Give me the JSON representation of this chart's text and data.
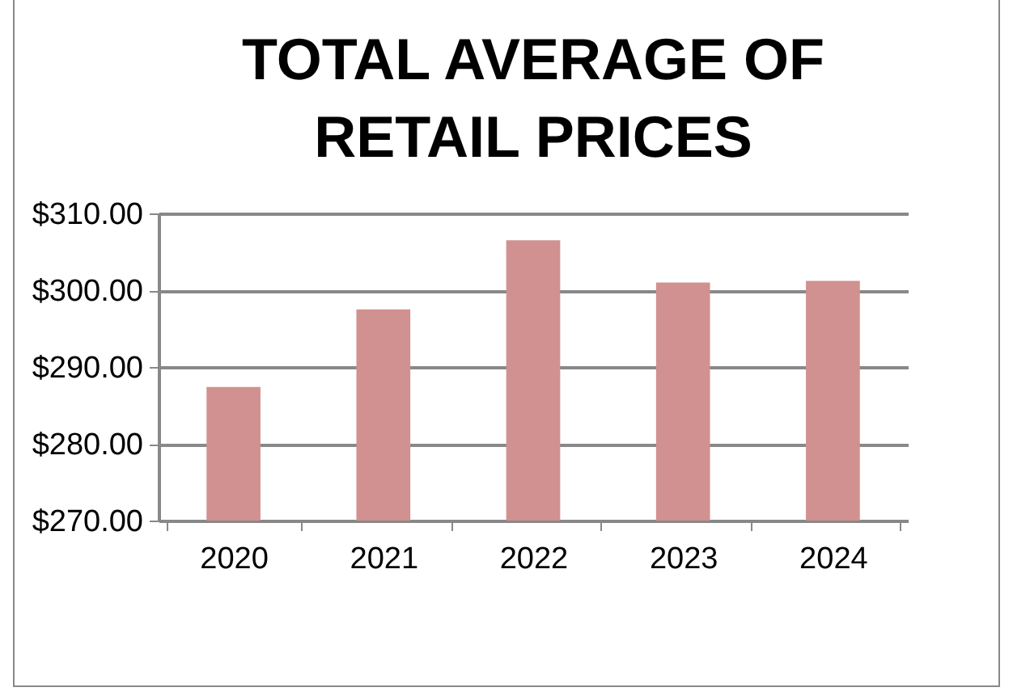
{
  "chart_data": {
    "type": "bar",
    "title": [
      "TOTAL AVERAGE OF",
      "RETAIL PRICES"
    ],
    "categories": [
      "2020",
      "2021",
      "2022",
      "2023",
      "2024"
    ],
    "values": [
      287.4,
      297.5,
      306.5,
      301.0,
      301.2
    ],
    "color": "#d19190",
    "ylim": [
      270,
      310
    ],
    "yticks": [
      {
        "value": 270,
        "label": "$270.00"
      },
      {
        "value": 280,
        "label": "$280.00"
      },
      {
        "value": 290,
        "label": "$290.00"
      },
      {
        "value": 300,
        "label": "$300.00"
      },
      {
        "value": 310,
        "label": "$310.00"
      }
    ],
    "grid": "y"
  }
}
